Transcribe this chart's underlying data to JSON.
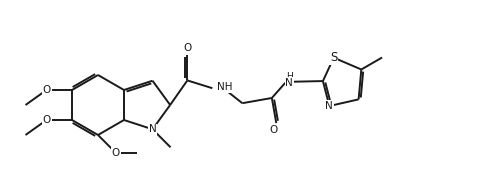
{
  "bg": "#ffffff",
  "lc": "#1a1a1a",
  "lw": 1.4,
  "fs": 7.5,
  "xlim": [
    0.0,
    5.02
  ],
  "ylim": [
    0.0,
    1.96
  ],
  "bl": 0.3
}
